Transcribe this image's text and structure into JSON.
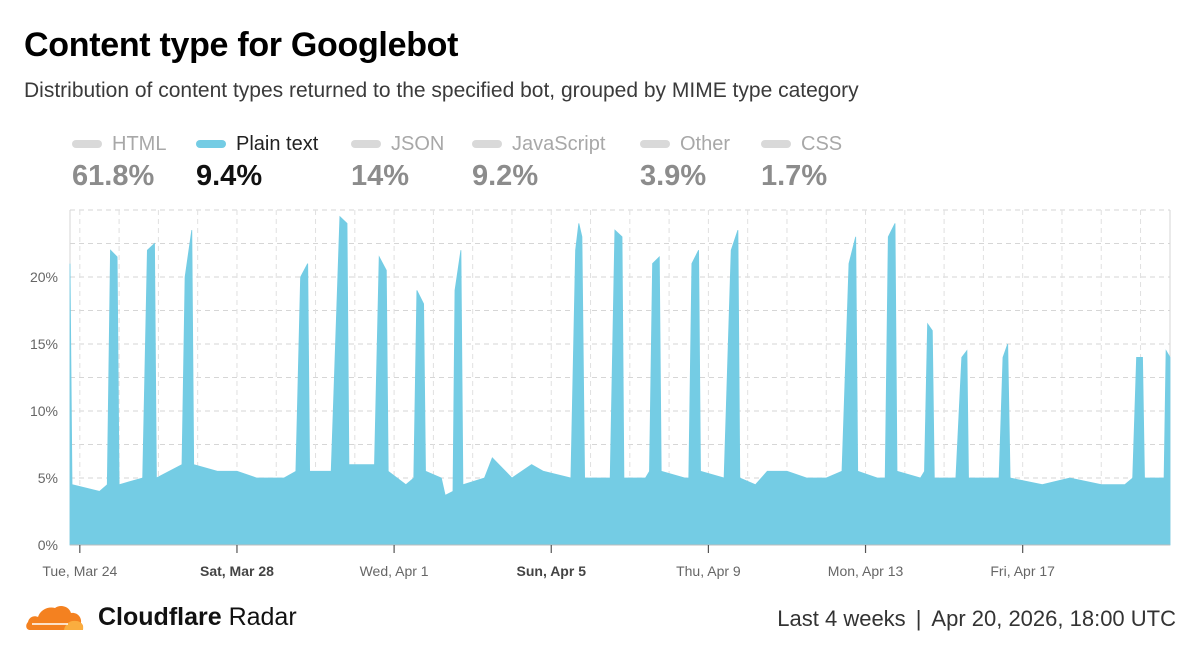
{
  "header": {
    "title": "Content type for Googlebot",
    "subtitle": "Distribution of content types returned to the specified bot, grouped by MIME type category"
  },
  "legend": [
    {
      "label": "HTML",
      "value": "61.8%",
      "color": "#d9d9d9",
      "active": false
    },
    {
      "label": "Plain text",
      "value": "9.4%",
      "color": "#74cce4",
      "active": true
    },
    {
      "label": "JSON",
      "value": "14%",
      "color": "#d9d9d9",
      "active": false
    },
    {
      "label": "JavaScript",
      "value": "9.2%",
      "color": "#d9d9d9",
      "active": false
    },
    {
      "label": "Other",
      "value": "3.9%",
      "color": "#d9d9d9",
      "active": false
    },
    {
      "label": "CSS",
      "value": "1.7%",
      "color": "#d9d9d9",
      "active": false
    }
  ],
  "chart_data": {
    "type": "area",
    "series": [
      {
        "name": "Plain text",
        "color": "#74cce4"
      }
    ],
    "ylim": [
      0,
      25
    ],
    "yticks": [
      {
        "value": 0,
        "label": "0%"
      },
      {
        "value": 5,
        "label": "5%"
      },
      {
        "value": 10,
        "label": "10%"
      },
      {
        "value": 15,
        "label": "15%"
      },
      {
        "value": 20,
        "label": "20%"
      }
    ],
    "xrange_days": [
      23.75,
      51.75
    ],
    "xticks": [
      {
        "day": 24,
        "label": "Tue, Mar 24",
        "bold": false
      },
      {
        "day": 28,
        "label": "Sat, Mar 28",
        "bold": true
      },
      {
        "day": 32,
        "label": "Wed, Apr 1",
        "bold": false
      },
      {
        "day": 36,
        "label": "Sun, Apr 5",
        "bold": true
      },
      {
        "day": 40,
        "label": "Thu, Apr 9",
        "bold": false
      },
      {
        "day": 44,
        "label": "Mon, Apr 13",
        "bold": false
      },
      {
        "day": 48,
        "label": "Fri, Apr 17",
        "bold": false
      }
    ],
    "points": [
      [
        23.75,
        21
      ],
      [
        23.8,
        4.5
      ],
      [
        24.5,
        4
      ],
      [
        24.7,
        4.5
      ],
      [
        24.78,
        22
      ],
      [
        24.95,
        21.5
      ],
      [
        25.0,
        4.5
      ],
      [
        25.6,
        5
      ],
      [
        25.72,
        22
      ],
      [
        25.9,
        22.5
      ],
      [
        25.95,
        5
      ],
      [
        26.6,
        6
      ],
      [
        26.68,
        20
      ],
      [
        26.85,
        23.5
      ],
      [
        26.9,
        6
      ],
      [
        27.5,
        5.5
      ],
      [
        28,
        5.5
      ],
      [
        28.5,
        5
      ],
      [
        29.2,
        5
      ],
      [
        29.5,
        5.5
      ],
      [
        29.62,
        20
      ],
      [
        29.8,
        21
      ],
      [
        29.85,
        5.5
      ],
      [
        30.4,
        5.5
      ],
      [
        30.62,
        24.5
      ],
      [
        30.8,
        24
      ],
      [
        30.85,
        6
      ],
      [
        31.5,
        6
      ],
      [
        31.62,
        21.5
      ],
      [
        31.8,
        20.5
      ],
      [
        31.85,
        5.5
      ],
      [
        32.3,
        4.5
      ],
      [
        32.5,
        5
      ],
      [
        32.58,
        19
      ],
      [
        32.75,
        18
      ],
      [
        32.8,
        5.5
      ],
      [
        33.2,
        5
      ],
      [
        33.3,
        3.7
      ],
      [
        33.5,
        4
      ],
      [
        33.55,
        19
      ],
      [
        33.7,
        22
      ],
      [
        33.75,
        4.5
      ],
      [
        34.3,
        5
      ],
      [
        34.5,
        6.5
      ],
      [
        35,
        5
      ],
      [
        35.5,
        6
      ],
      [
        35.8,
        5.5
      ],
      [
        36.5,
        5
      ],
      [
        36.62,
        22
      ],
      [
        36.7,
        24
      ],
      [
        36.78,
        23
      ],
      [
        36.85,
        5
      ],
      [
        37.5,
        5
      ],
      [
        37.62,
        23.5
      ],
      [
        37.8,
        23
      ],
      [
        37.85,
        5
      ],
      [
        38.4,
        5
      ],
      [
        38.5,
        5.5
      ],
      [
        38.58,
        21
      ],
      [
        38.75,
        21.5
      ],
      [
        38.8,
        5.5
      ],
      [
        39.4,
        5
      ],
      [
        39.5,
        5
      ],
      [
        39.58,
        21
      ],
      [
        39.75,
        22
      ],
      [
        39.8,
        5.5
      ],
      [
        40.4,
        5
      ],
      [
        40.58,
        22
      ],
      [
        40.75,
        23.5
      ],
      [
        40.8,
        5
      ],
      [
        41.2,
        4.5
      ],
      [
        41.5,
        5.5
      ],
      [
        42,
        5.5
      ],
      [
        42.5,
        5
      ],
      [
        43,
        5
      ],
      [
        43.4,
        5.5
      ],
      [
        43.58,
        21
      ],
      [
        43.75,
        23
      ],
      [
        43.8,
        5.5
      ],
      [
        44.3,
        5
      ],
      [
        44.5,
        5
      ],
      [
        44.58,
        23
      ],
      [
        44.75,
        24
      ],
      [
        44.8,
        5.5
      ],
      [
        45.4,
        5
      ],
      [
        45.5,
        5.5
      ],
      [
        45.58,
        16.5
      ],
      [
        45.7,
        16
      ],
      [
        45.75,
        5
      ],
      [
        46.3,
        5
      ],
      [
        46.45,
        14
      ],
      [
        46.58,
        14.5
      ],
      [
        46.62,
        5
      ],
      [
        47.2,
        5
      ],
      [
        47.4,
        5
      ],
      [
        47.5,
        14
      ],
      [
        47.62,
        15
      ],
      [
        47.68,
        5
      ],
      [
        48.5,
        4.5
      ],
      [
        49.2,
        5
      ],
      [
        50,
        4.5
      ],
      [
        50.6,
        4.5
      ],
      [
        50.8,
        5
      ],
      [
        50.9,
        14
      ],
      [
        51.05,
        14
      ],
      [
        51.1,
        5
      ],
      [
        51.4,
        5
      ],
      [
        51.6,
        5
      ],
      [
        51.65,
        14.5
      ],
      [
        51.75,
        14
      ]
    ]
  },
  "footer": {
    "brand_bold": "Cloudflare",
    "brand_rest": " Radar",
    "range_label": "Last 4 weeks",
    "separator": "|",
    "timestamp": "Apr 20, 2026, 18:00 UTC"
  }
}
